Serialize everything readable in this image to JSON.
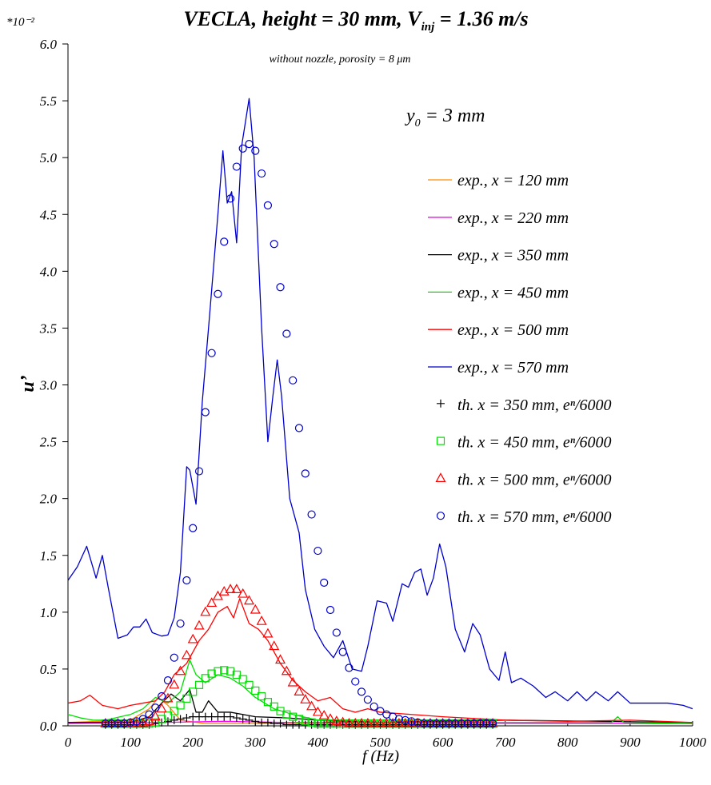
{
  "chart_data": {
    "type": "line",
    "title": [
      "VECLA, height = 30 mm, V",
      "inj",
      " = 1.36 m/s"
    ],
    "subtitle": "without nozzle, porosity = 8 μm",
    "scale_note": "*10⁻²",
    "annotation": [
      "y",
      "0",
      " = 3 mm"
    ],
    "x_label": "f (Hz)",
    "y_label": "u’",
    "xlim": [
      0,
      1000
    ],
    "ylim": [
      0,
      6.0
    ],
    "xticks": [
      0,
      100,
      200,
      300,
      400,
      500,
      600,
      700,
      800,
      900,
      1000
    ],
    "yticks": [
      {
        "value": 0,
        "label": "0.0"
      },
      0.5,
      {
        "value": 1,
        "label": "1.0"
      },
      1.5,
      {
        "value": 2,
        "label": "2.0"
      },
      2.5,
      {
        "value": 3,
        "label": "3.0"
      },
      3.5,
      {
        "value": 4,
        "label": "4.0"
      },
      4.5,
      {
        "value": 5,
        "label": "5.0"
      },
      5.5,
      {
        "value": 6,
        "label": "6.0"
      }
    ],
    "series": [
      {
        "name": "exp., x = 120 mm",
        "color": "#ff8c00",
        "x": [
          0,
          100,
          130,
          145,
          160,
          180,
          220,
          1000
        ],
        "values": [
          0.03,
          0.05,
          0.15,
          0.25,
          0.18,
          0.05,
          0.02,
          0.02
        ]
      },
      {
        "name": "exp., x = 220 mm",
        "color": "#ff00ff",
        "x": [
          0,
          150,
          250,
          350,
          1000
        ],
        "values": [
          0.02,
          0.03,
          0.04,
          0.03,
          0.02
        ]
      },
      {
        "name": "exp., x = 350 mm",
        "color": "#000000",
        "x": [
          0,
          100,
          130,
          150,
          165,
          180,
          195,
          205,
          215,
          225,
          240,
          260,
          300,
          350,
          400,
          500,
          700,
          1000
        ],
        "values": [
          0.03,
          0.03,
          0.08,
          0.2,
          0.28,
          0.22,
          0.32,
          0.12,
          0.12,
          0.22,
          0.12,
          0.12,
          0.08,
          0.07,
          0.05,
          0.03,
          0.05,
          0.03
        ]
      },
      {
        "name": "exp., x = 450 mm",
        "color": "#00e000",
        "x": [
          0,
          20,
          40,
          60,
          100,
          120,
          140,
          160,
          180,
          195,
          205,
          220,
          240,
          260,
          280,
          300,
          330,
          360,
          400,
          450,
          600,
          870,
          880,
          890,
          1000
        ],
        "values": [
          0.1,
          0.07,
          0.05,
          0.05,
          0.1,
          0.15,
          0.25,
          0.2,
          0.3,
          0.58,
          0.45,
          0.38,
          0.45,
          0.42,
          0.35,
          0.25,
          0.15,
          0.1,
          0.05,
          0.03,
          0.03,
          0.03,
          0.08,
          0.03,
          0.02
        ]
      },
      {
        "name": "exp., x = 500 mm",
        "color": "#ff0000",
        "x": [
          0,
          20,
          35,
          55,
          80,
          100,
          120,
          140,
          155,
          170,
          190,
          210,
          225,
          240,
          255,
          265,
          275,
          290,
          305,
          320,
          340,
          360,
          380,
          400,
          420,
          440,
          460,
          480,
          500,
          550,
          600,
          700,
          800,
          900,
          1000
        ],
        "values": [
          0.2,
          0.22,
          0.27,
          0.18,
          0.15,
          0.18,
          0.2,
          0.22,
          0.3,
          0.45,
          0.55,
          0.75,
          0.85,
          1.0,
          1.05,
          0.95,
          1.12,
          0.9,
          0.85,
          0.75,
          0.55,
          0.4,
          0.3,
          0.22,
          0.25,
          0.15,
          0.12,
          0.15,
          0.12,
          0.1,
          0.08,
          0.05,
          0.04,
          0.05,
          0.03
        ]
      },
      {
        "name": "exp., x = 570 mm",
        "color": "#0000cc",
        "x": [
          0,
          15,
          30,
          45,
          55,
          65,
          80,
          95,
          105,
          115,
          125,
          135,
          150,
          160,
          170,
          180,
          190,
          195,
          205,
          215,
          225,
          240,
          248,
          255,
          262,
          270,
          278,
          290,
          298,
          310,
          320,
          328,
          335,
          342,
          355,
          370,
          380,
          395,
          410,
          425,
          440,
          455,
          470,
          480,
          495,
          510,
          520,
          535,
          545,
          555,
          565,
          575,
          585,
          595,
          605,
          620,
          635,
          648,
          660,
          675,
          690,
          700,
          710,
          725,
          745,
          765,
          780,
          800,
          815,
          830,
          845,
          865,
          880,
          900,
          920,
          940,
          960,
          985,
          1000
        ],
        "values": [
          1.28,
          1.4,
          1.58,
          1.3,
          1.5,
          1.2,
          0.77,
          0.8,
          0.87,
          0.87,
          0.94,
          0.82,
          0.79,
          0.8,
          0.95,
          1.35,
          2.28,
          2.25,
          1.95,
          2.85,
          3.5,
          4.5,
          5.06,
          4.6,
          4.7,
          4.25,
          5.1,
          5.52,
          5.0,
          3.5,
          2.5,
          2.9,
          3.22,
          2.9,
          2.0,
          1.7,
          1.2,
          0.85,
          0.7,
          0.6,
          0.75,
          0.5,
          0.48,
          0.7,
          1.1,
          1.08,
          0.92,
          1.25,
          1.22,
          1.35,
          1.38,
          1.15,
          1.3,
          1.6,
          1.4,
          0.85,
          0.65,
          0.9,
          0.8,
          0.5,
          0.4,
          0.65,
          0.38,
          0.42,
          0.35,
          0.25,
          0.3,
          0.22,
          0.3,
          0.22,
          0.3,
          0.22,
          0.3,
          0.2,
          0.2,
          0.2,
          0.2,
          0.18,
          0.15
        ]
      },
      {
        "name": "th. x = 350 mm, eⁿ/6000",
        "color": "#000000",
        "marker": "plus",
        "x": [
          60,
          70,
          80,
          90,
          100,
          110,
          120,
          130,
          140,
          150,
          160,
          170,
          180,
          190,
          200,
          210,
          220,
          230,
          240,
          250,
          260,
          270,
          280,
          290,
          300,
          310,
          320,
          330,
          340,
          350,
          360,
          370,
          380,
          390,
          400,
          410,
          420,
          430,
          440,
          450,
          460,
          470,
          480,
          490,
          500,
          510,
          520,
          530,
          540,
          550,
          560,
          570,
          580,
          590,
          600,
          610,
          620,
          630,
          640,
          650,
          660,
          670,
          680
        ],
        "values": [
          0.01,
          0.01,
          0.01,
          0.01,
          0.01,
          0.01,
          0.01,
          0.01,
          0.02,
          0.03,
          0.04,
          0.05,
          0.06,
          0.07,
          0.08,
          0.08,
          0.08,
          0.08,
          0.08,
          0.08,
          0.08,
          0.07,
          0.06,
          0.05,
          0.04,
          0.03,
          0.03,
          0.02,
          0.02,
          0.01,
          0.01,
          0.01,
          0.01,
          0.01,
          0.01,
          0.01,
          0.01,
          0.01,
          0.01,
          0.01,
          0.01,
          0.01,
          0.01,
          0.01,
          0.01,
          0.01,
          0.01,
          0.01,
          0.01,
          0.01,
          0.01,
          0.01,
          0.01,
          0.01,
          0.01,
          0.01,
          0.01,
          0.01,
          0.01,
          0.01,
          0.01,
          0.01,
          0.01
        ]
      },
      {
        "name": "th. x = 450 mm, eⁿ/6000",
        "color": "#00e000",
        "marker": "square",
        "x": [
          60,
          70,
          80,
          90,
          100,
          110,
          120,
          130,
          140,
          150,
          160,
          170,
          180,
          190,
          200,
          210,
          220,
          230,
          240,
          250,
          260,
          270,
          280,
          290,
          300,
          310,
          320,
          330,
          340,
          350,
          360,
          370,
          380,
          390,
          400,
          410,
          420,
          430,
          440,
          450,
          460,
          470,
          480,
          490,
          500,
          510,
          520,
          530,
          540,
          550,
          560,
          570,
          580,
          590,
          600,
          610,
          620,
          630,
          640,
          650,
          660,
          670,
          680
        ],
        "values": [
          0.02,
          0.02,
          0.02,
          0.02,
          0.02,
          0.02,
          0.02,
          0.02,
          0.03,
          0.06,
          0.09,
          0.13,
          0.18,
          0.24,
          0.3,
          0.36,
          0.42,
          0.46,
          0.48,
          0.49,
          0.48,
          0.45,
          0.41,
          0.36,
          0.31,
          0.26,
          0.21,
          0.17,
          0.13,
          0.1,
          0.08,
          0.06,
          0.04,
          0.03,
          0.02,
          0.02,
          0.02,
          0.02,
          0.02,
          0.02,
          0.02,
          0.02,
          0.02,
          0.02,
          0.02,
          0.02,
          0.02,
          0.02,
          0.02,
          0.02,
          0.02,
          0.02,
          0.02,
          0.02,
          0.02,
          0.02,
          0.02,
          0.02,
          0.02,
          0.02,
          0.02,
          0.02,
          0.02
        ]
      },
      {
        "name": "th. x = 500 mm, eⁿ/6000",
        "color": "#ff0000",
        "marker": "triangle",
        "x": [
          60,
          70,
          80,
          90,
          100,
          110,
          120,
          130,
          140,
          150,
          160,
          170,
          180,
          190,
          200,
          210,
          220,
          230,
          240,
          250,
          260,
          270,
          280,
          290,
          300,
          310,
          320,
          330,
          340,
          350,
          360,
          370,
          380,
          390,
          400,
          410,
          420,
          430,
          440,
          450,
          460,
          470,
          480,
          490,
          500,
          510,
          520,
          530,
          540,
          550,
          560,
          570,
          580,
          590,
          600,
          610,
          620,
          630,
          640,
          650,
          660,
          670,
          680
        ],
        "values": [
          0.02,
          0.02,
          0.02,
          0.02,
          0.02,
          0.02,
          0.02,
          0.04,
          0.08,
          0.15,
          0.24,
          0.36,
          0.48,
          0.62,
          0.76,
          0.88,
          1.0,
          1.08,
          1.14,
          1.18,
          1.2,
          1.2,
          1.16,
          1.1,
          1.02,
          0.92,
          0.81,
          0.7,
          0.58,
          0.48,
          0.38,
          0.3,
          0.23,
          0.17,
          0.12,
          0.09,
          0.06,
          0.04,
          0.03,
          0.02,
          0.02,
          0.02,
          0.02,
          0.02,
          0.02,
          0.02,
          0.02,
          0.02,
          0.02,
          0.02,
          0.02,
          0.02,
          0.02,
          0.02,
          0.02,
          0.02,
          0.02,
          0.02,
          0.02,
          0.02,
          0.02,
          0.02,
          0.02
        ]
      },
      {
        "name": "th. x = 570 mm, eⁿ/6000",
        "color": "#0000cc",
        "marker": "circle",
        "x": [
          60,
          70,
          80,
          90,
          100,
          110,
          120,
          130,
          140,
          150,
          160,
          170,
          180,
          190,
          200,
          210,
          220,
          230,
          240,
          250,
          260,
          270,
          280,
          290,
          300,
          310,
          320,
          330,
          340,
          350,
          360,
          370,
          380,
          390,
          400,
          410,
          420,
          430,
          440,
          450,
          460,
          470,
          480,
          490,
          500,
          510,
          520,
          530,
          540,
          550,
          560,
          570,
          580,
          590,
          600,
          610,
          620,
          630,
          640,
          650,
          660,
          670,
          680
        ],
        "values": [
          0.02,
          0.02,
          0.02,
          0.02,
          0.03,
          0.04,
          0.06,
          0.1,
          0.16,
          0.26,
          0.4,
          0.6,
          0.9,
          1.28,
          1.74,
          2.24,
          2.76,
          3.28,
          3.8,
          4.26,
          4.64,
          4.92,
          5.08,
          5.12,
          5.06,
          4.86,
          4.58,
          4.24,
          3.86,
          3.45,
          3.04,
          2.62,
          2.22,
          1.86,
          1.54,
          1.26,
          1.02,
          0.82,
          0.65,
          0.51,
          0.39,
          0.3,
          0.23,
          0.17,
          0.13,
          0.1,
          0.08,
          0.06,
          0.05,
          0.04,
          0.03,
          0.02,
          0.02,
          0.02,
          0.02,
          0.02,
          0.02,
          0.02,
          0.02,
          0.02,
          0.02,
          0.02,
          0.02
        ]
      }
    ]
  }
}
